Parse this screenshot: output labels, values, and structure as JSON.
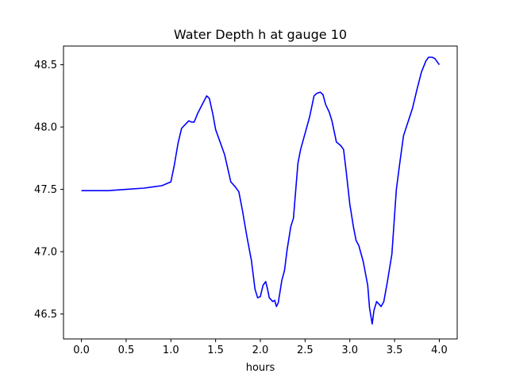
{
  "chart_data": {
    "type": "line",
    "title": "Water Depth h at gauge 10",
    "xlabel": "hours",
    "ylabel": "",
    "xlim": [
      -0.2,
      4.2
    ],
    "ylim": [
      46.3,
      48.65
    ],
    "x_ticks": [
      0.0,
      0.5,
      1.0,
      1.5,
      2.0,
      2.5,
      3.0,
      3.5,
      4.0
    ],
    "x_tick_labels": [
      "0.0",
      "0.5",
      "1.0",
      "1.5",
      "2.0",
      "2.5",
      "3.0",
      "3.5",
      "4.0"
    ],
    "y_ticks": [
      46.5,
      47.0,
      47.5,
      48.0,
      48.5
    ],
    "y_tick_labels": [
      "46.5",
      "47.0",
      "47.5",
      "48.0",
      "48.5"
    ],
    "grid": false,
    "series": [
      {
        "color": "#0000ff",
        "x": [
          0.0,
          0.3,
          0.5,
          0.7,
          0.8,
          0.9,
          1.0,
          1.04,
          1.08,
          1.12,
          1.16,
          1.2,
          1.23,
          1.26,
          1.3,
          1.35,
          1.4,
          1.43,
          1.47,
          1.5,
          1.6,
          1.67,
          1.72,
          1.76,
          1.8,
          1.85,
          1.9,
          1.94,
          1.97,
          2.0,
          2.03,
          2.06,
          2.08,
          2.1,
          2.14,
          2.16,
          2.18,
          2.2,
          2.24,
          2.27,
          2.3,
          2.34,
          2.37,
          2.42,
          2.45,
          2.5,
          2.55,
          2.6,
          2.63,
          2.67,
          2.7,
          2.73,
          2.77,
          2.8,
          2.85,
          2.9,
          2.93,
          2.96,
          3.0,
          3.04,
          3.07,
          3.1,
          3.15,
          3.2,
          3.22,
          3.25,
          3.27,
          3.3,
          3.35,
          3.38,
          3.42,
          3.47,
          3.52,
          3.56,
          3.6,
          3.65,
          3.7,
          3.75,
          3.8,
          3.85,
          3.88,
          3.92,
          3.95,
          3.98,
          4.0
        ],
        "y": [
          47.49,
          47.49,
          47.5,
          47.51,
          47.52,
          47.53,
          47.56,
          47.7,
          47.87,
          47.99,
          48.02,
          48.05,
          48.04,
          48.04,
          48.11,
          48.18,
          48.25,
          48.23,
          48.1,
          47.98,
          47.78,
          47.56,
          47.52,
          47.48,
          47.33,
          47.12,
          46.93,
          46.7,
          46.63,
          46.64,
          46.73,
          46.76,
          46.7,
          46.63,
          46.6,
          46.61,
          46.56,
          46.59,
          46.77,
          46.85,
          47.02,
          47.2,
          47.27,
          47.71,
          47.82,
          47.95,
          48.08,
          48.25,
          48.27,
          48.28,
          48.26,
          48.18,
          48.12,
          48.05,
          47.88,
          47.85,
          47.82,
          47.64,
          47.38,
          47.2,
          47.09,
          47.05,
          46.92,
          46.73,
          46.55,
          46.42,
          46.53,
          46.6,
          46.56,
          46.6,
          46.76,
          46.98,
          47.5,
          47.72,
          47.93,
          48.04,
          48.15,
          48.3,
          48.44,
          48.53,
          48.56,
          48.56,
          48.55,
          48.52,
          48.5
        ]
      }
    ]
  }
}
